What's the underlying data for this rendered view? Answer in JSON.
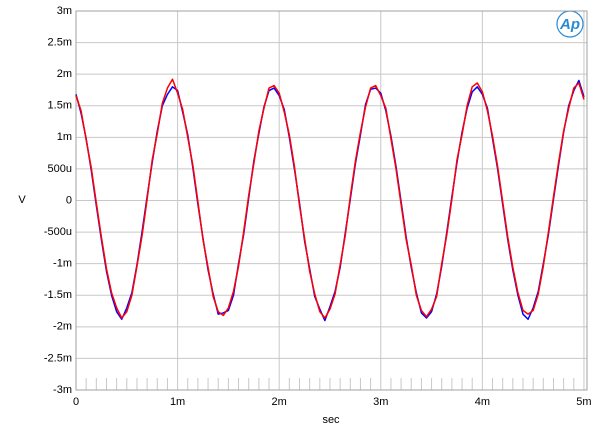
{
  "chart_data": {
    "type": "line",
    "annotation": "Ap",
    "xlabel": "sec",
    "ylabel": "V",
    "x": [
      0,
      5e-05,
      0.0001,
      0.00015,
      0.0002,
      0.00025,
      0.0003,
      0.00035,
      0.0004,
      0.00045,
      0.0005,
      0.00055,
      0.0006,
      0.00065,
      0.0007,
      0.00075,
      0.0008,
      0.00085,
      0.0009,
      0.00095,
      0.001,
      0.00105,
      0.0011,
      0.00115,
      0.0012,
      0.00125,
      0.0013,
      0.00135,
      0.0014,
      0.00145,
      0.0015,
      0.00155,
      0.0016,
      0.00165,
      0.0017,
      0.00175,
      0.0018,
      0.00185,
      0.0019,
      0.00195,
      0.002,
      0.00205,
      0.0021,
      0.00215,
      0.0022,
      0.00225,
      0.0023,
      0.00235,
      0.0024,
      0.00245,
      0.0025,
      0.00255,
      0.0026,
      0.00265,
      0.0027,
      0.00275,
      0.0028,
      0.00285,
      0.0029,
      0.00295,
      0.003,
      0.00305,
      0.0031,
      0.00315,
      0.0032,
      0.00325,
      0.0033,
      0.00335,
      0.0034,
      0.00345,
      0.0035,
      0.00355,
      0.0036,
      0.00365,
      0.0037,
      0.00375,
      0.0038,
      0.00385,
      0.0039,
      0.00395,
      0.004,
      0.00405,
      0.0041,
      0.00415,
      0.0042,
      0.00425,
      0.0043,
      0.00435,
      0.0044,
      0.00445,
      0.0045,
      0.00455,
      0.0046,
      0.00465,
      0.0047,
      0.00475,
      0.0048,
      0.00485,
      0.0049,
      0.00495,
      0.005
    ],
    "series": [
      {
        "color": "#0000ff",
        "values": [
          0.00168,
          0.00138,
          0.00098,
          0.00048,
          -8e-05,
          -0.00062,
          -0.00112,
          -0.0015,
          -0.00176,
          -0.00188,
          -0.0017,
          -0.00146,
          -0.00102,
          -0.0005,
          6e-05,
          0.0006,
          0.0011,
          0.0015,
          0.00168,
          0.0018,
          0.00174,
          0.0014,
          0.00104,
          0.00052,
          -6e-05,
          -0.0006,
          -0.0011,
          -0.00148,
          -0.0018,
          -0.00178,
          -0.00174,
          -0.0015,
          -0.001,
          -0.00054,
          4e-05,
          0.00062,
          0.00106,
          0.00148,
          0.00174,
          0.00178,
          0.00166,
          0.00144,
          0.001,
          0.0005,
          -4e-05,
          -0.00064,
          -0.00108,
          -0.00152,
          -0.00172,
          -0.0019,
          -0.00168,
          -0.00144,
          -0.00106,
          -0.00052,
          2e-05,
          0.00058,
          0.00104,
          0.00152,
          0.00176,
          0.00178,
          0.0017,
          0.00142,
          0.00102,
          0.00054,
          -2e-05,
          -0.00058,
          -0.00106,
          -0.00146,
          -0.00178,
          -0.00186,
          -0.00176,
          -0.00148,
          -0.00104,
          -0.0005,
          6e-05,
          0.0006,
          0.00108,
          0.00146,
          0.00172,
          0.0018,
          0.00168,
          0.00146,
          0.00098,
          0.0005,
          -6e-05,
          -0.00062,
          -0.0011,
          -0.0015,
          -0.0018,
          -0.00188,
          -0.0017,
          -0.00144,
          -0.001,
          -0.00054,
          2e-05,
          0.00056,
          0.00108,
          0.0015,
          0.00174,
          0.0019,
          0.00164
        ]
      },
      {
        "color": "#ff0000",
        "values": [
          0.00166,
          0.00142,
          0.00096,
          0.00052,
          -4e-05,
          -0.00058,
          -0.00108,
          -0.00146,
          -0.0017,
          -0.00186,
          -0.00176,
          -0.0015,
          -0.00104,
          -0.00056,
          2e-05,
          0.00064,
          0.00106,
          0.00154,
          0.00178,
          0.00192,
          0.0017,
          0.00144,
          0.001,
          0.00056,
          -2e-05,
          -0.00062,
          -0.00106,
          -0.00152,
          -0.00176,
          -0.00182,
          -0.0017,
          -0.00144,
          -0.00104,
          -0.0005,
          8e-05,
          0.00058,
          0.0011,
          0.00146,
          0.00178,
          0.00182,
          0.0017,
          0.0014,
          0.00104,
          0.00054,
          -8e-05,
          -0.0006,
          -0.00112,
          -0.00148,
          -0.00176,
          -0.00186,
          -0.00172,
          -0.00148,
          -0.00102,
          -0.00056,
          6e-05,
          0.00062,
          0.00108,
          0.00148,
          0.00178,
          0.00182,
          0.00166,
          0.00146,
          0.00098,
          0.0005,
          -6e-05,
          -0.00062,
          -0.00102,
          -0.0015,
          -0.00174,
          -0.00184,
          -0.00172,
          -0.00152,
          -0.001,
          -0.00054,
          2e-05,
          0.00064,
          0.00104,
          0.0015,
          0.0018,
          0.00186,
          0.00172,
          0.00142,
          0.00102,
          0.00054,
          -2e-05,
          -0.00058,
          -0.00106,
          -0.00146,
          -0.00174,
          -0.0018,
          -0.00174,
          -0.00148,
          -0.00104,
          -0.0005,
          6e-05,
          0.0006,
          0.0011,
          0.00146,
          0.00178,
          0.00186,
          0.0016
        ]
      }
    ],
    "xlim": [
      0,
      0.00503
    ],
    "ylim": [
      -0.003,
      0.003
    ],
    "xticks": [
      0,
      {
        "value": 0.001,
        "label": "1m"
      },
      {
        "value": 0.002,
        "label": "2m"
      },
      {
        "value": 0.003,
        "label": "3m"
      },
      {
        "value": 0.004,
        "label": "4m"
      },
      {
        "value": 0.005,
        "label": "5m"
      }
    ],
    "xminorticks": [
      0.0001,
      0.0002,
      0.0003,
      0.0004,
      0.0005,
      0.0006,
      0.0007,
      0.0008,
      0.0009,
      0.0011,
      0.0012,
      0.0013,
      0.0014,
      0.0015,
      0.0016,
      0.0017,
      0.0018,
      0.0019,
      0.0021,
      0.0022,
      0.0023,
      0.0024,
      0.0025,
      0.0026,
      0.0027,
      0.0028,
      0.0029,
      0.0031,
      0.0032,
      0.0033,
      0.0034,
      0.0035,
      0.0036,
      0.0037,
      0.0038,
      0.0039,
      0.0041,
      0.0042,
      0.0043,
      0.0044,
      0.0045,
      0.0046,
      0.0047,
      0.0048,
      0.0049
    ],
    "yticks": [
      {
        "value": -0.003,
        "label": "-3m"
      },
      {
        "value": -0.0025,
        "label": "-2.5m"
      },
      {
        "value": -0.002,
        "label": "-2m"
      },
      {
        "value": -0.0015,
        "label": "-1.5m"
      },
      {
        "value": -0.001,
        "label": "-1m"
      },
      {
        "value": -0.0005,
        "label": "-500u"
      },
      0,
      {
        "value": 0.0005,
        "label": "500u"
      },
      {
        "value": 0.001,
        "label": "1m"
      },
      {
        "value": 0.0015,
        "label": "1.5m"
      },
      {
        "value": 0.002,
        "label": "2m"
      },
      {
        "value": 0.0025,
        "label": "2.5m"
      },
      {
        "value": 0.003,
        "label": "3m"
      }
    ],
    "grid": true
  }
}
